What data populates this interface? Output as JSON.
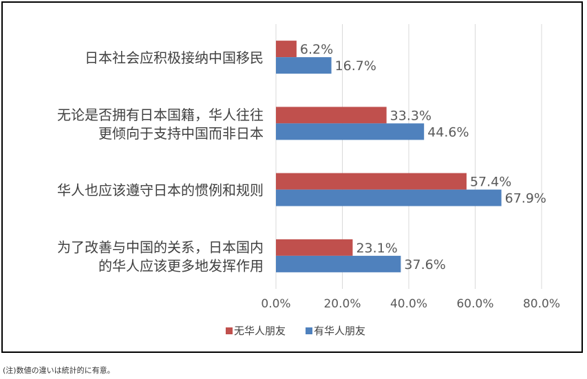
{
  "chart_data": {
    "type": "bar",
    "orientation": "horizontal",
    "categories": [
      [
        "日本社会应积极接纳中国移民"
      ],
      [
        "无论是否拥有日本国籍，华人往往",
        "更倾向于支持中国而非日本"
      ],
      [
        "华人也应该遵守日本的惯例和规则"
      ],
      [
        "为了改善与中国的关系，日本国内",
        "的华人应该更多地发挥作用"
      ]
    ],
    "series": [
      {
        "name": "无华人朋友",
        "color": "#c0504d",
        "values": [
          6.2,
          33.3,
          57.4,
          23.1
        ],
        "labels": [
          "6.2%",
          "33.3%",
          "57.4%",
          "23.1%"
        ]
      },
      {
        "name": "有华人朋友",
        "color": "#4f81bd",
        "values": [
          16.7,
          44.6,
          67.9,
          37.6
        ],
        "labels": [
          "16.7%",
          "44.6%",
          "67.9%",
          "37.6%"
        ]
      }
    ],
    "xlim": [
      0,
      80
    ],
    "xticks": [
      "0.0%",
      "20.0%",
      "40.0%",
      "60.0%",
      "80.0%"
    ],
    "grid": true,
    "legend_position": "bottom"
  },
  "note": "(注)数値の違いは統計的に有意。"
}
